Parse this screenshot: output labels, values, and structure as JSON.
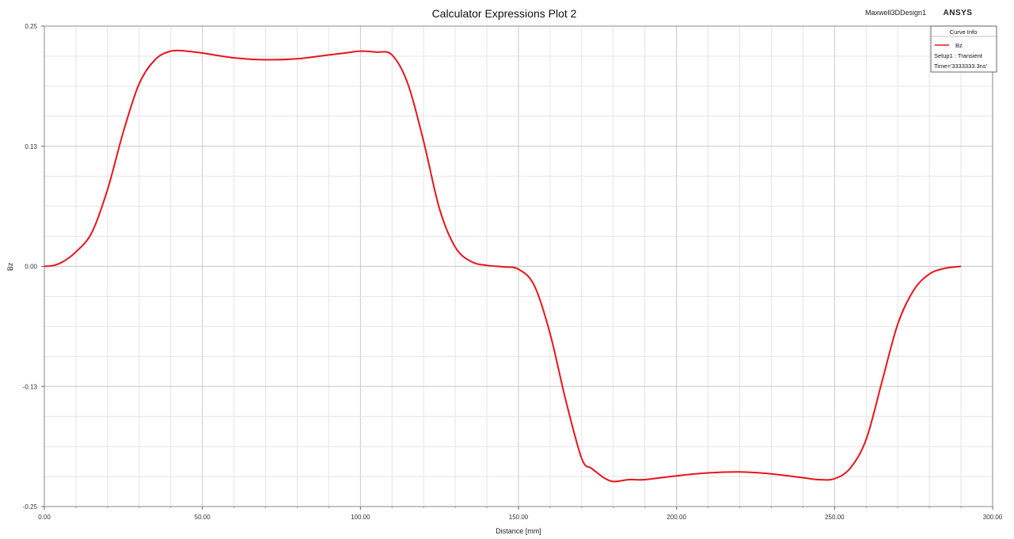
{
  "header": {
    "brand_design": "Maxwell3DDesign1",
    "brand_vendor": "ANSYS"
  },
  "chart_data": {
    "type": "line",
    "title": "Calculator Expressions Plot 2",
    "xlabel": "Distance [mm]",
    "ylabel": "Bz",
    "xlim": [
      0,
      300
    ],
    "ylim": [
      -0.25,
      0.25
    ],
    "x_ticks": [
      "0.00",
      "50.00",
      "100.00",
      "150.00",
      "200.00",
      "250.00",
      "300.00"
    ],
    "y_ticks": [
      "0.25",
      "0.13",
      "0.00",
      "-0.13",
      "-0.25"
    ],
    "y_tick_values": [
      0.25,
      0.125,
      0,
      -0.125,
      -0.25
    ],
    "grid": true,
    "legend_position": "top-right",
    "legend": {
      "title": "Curve Info",
      "entries": [
        {
          "name": "Bz",
          "color": "#e8141c"
        }
      ],
      "notes": [
        "Setup1 : Transient",
        "Time='3333333.3ns'"
      ]
    },
    "series": [
      {
        "name": "Bz",
        "color": "#e8141c",
        "x": [
          0,
          3,
          6,
          10,
          15,
          20,
          25,
          30,
          35,
          40,
          45,
          50,
          60,
          70,
          80,
          90,
          95,
          100,
          105,
          110,
          115,
          120,
          125,
          130,
          135,
          140,
          145,
          150,
          155,
          160,
          165,
          170,
          173,
          175,
          177,
          180,
          185,
          190,
          200,
          210,
          220,
          230,
          240,
          245,
          250,
          255,
          260,
          265,
          270,
          275,
          280,
          285,
          290
        ],
        "y": [
          0.0,
          0.001,
          0.005,
          0.015,
          0.035,
          0.08,
          0.14,
          0.19,
          0.215,
          0.224,
          0.224,
          0.222,
          0.217,
          0.215,
          0.216,
          0.22,
          0.222,
          0.224,
          0.223,
          0.22,
          0.19,
          0.13,
          0.06,
          0.02,
          0.005,
          0.001,
          -0.0005,
          -0.003,
          -0.02,
          -0.07,
          -0.14,
          -0.2,
          -0.21,
          -0.215,
          -0.22,
          -0.224,
          -0.222,
          -0.222,
          -0.218,
          -0.215,
          -0.214,
          -0.216,
          -0.22,
          -0.222,
          -0.221,
          -0.21,
          -0.18,
          -0.12,
          -0.06,
          -0.025,
          -0.008,
          -0.002,
          0.0
        ]
      }
    ]
  }
}
